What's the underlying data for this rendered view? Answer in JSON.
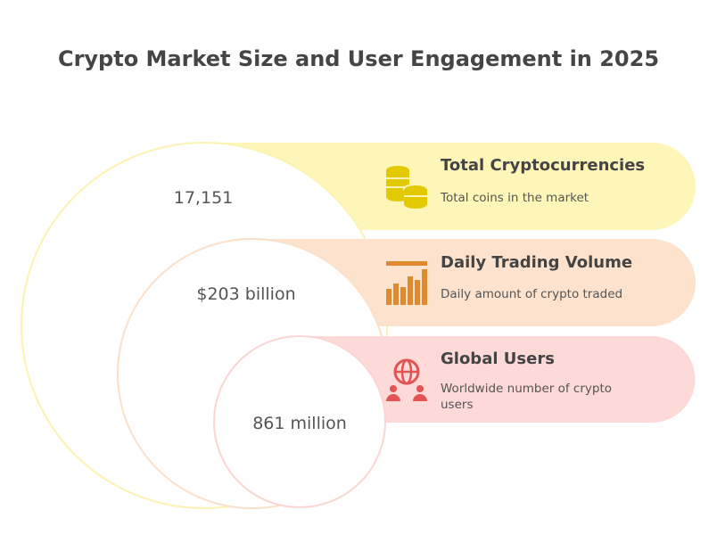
{
  "title": "Crypto Market Size and User Engagement in 2025",
  "items": [
    {
      "value": "17,151",
      "heading": "Total Cryptocurrencies",
      "description": "Total coins in the market"
    },
    {
      "value": "$203 billion",
      "heading": "Daily Trading Volume",
      "description": "Daily amount of crypto traded"
    },
    {
      "value": "861 million",
      "heading": "Global Users",
      "description": "Worldwide number of crypto users"
    }
  ]
}
